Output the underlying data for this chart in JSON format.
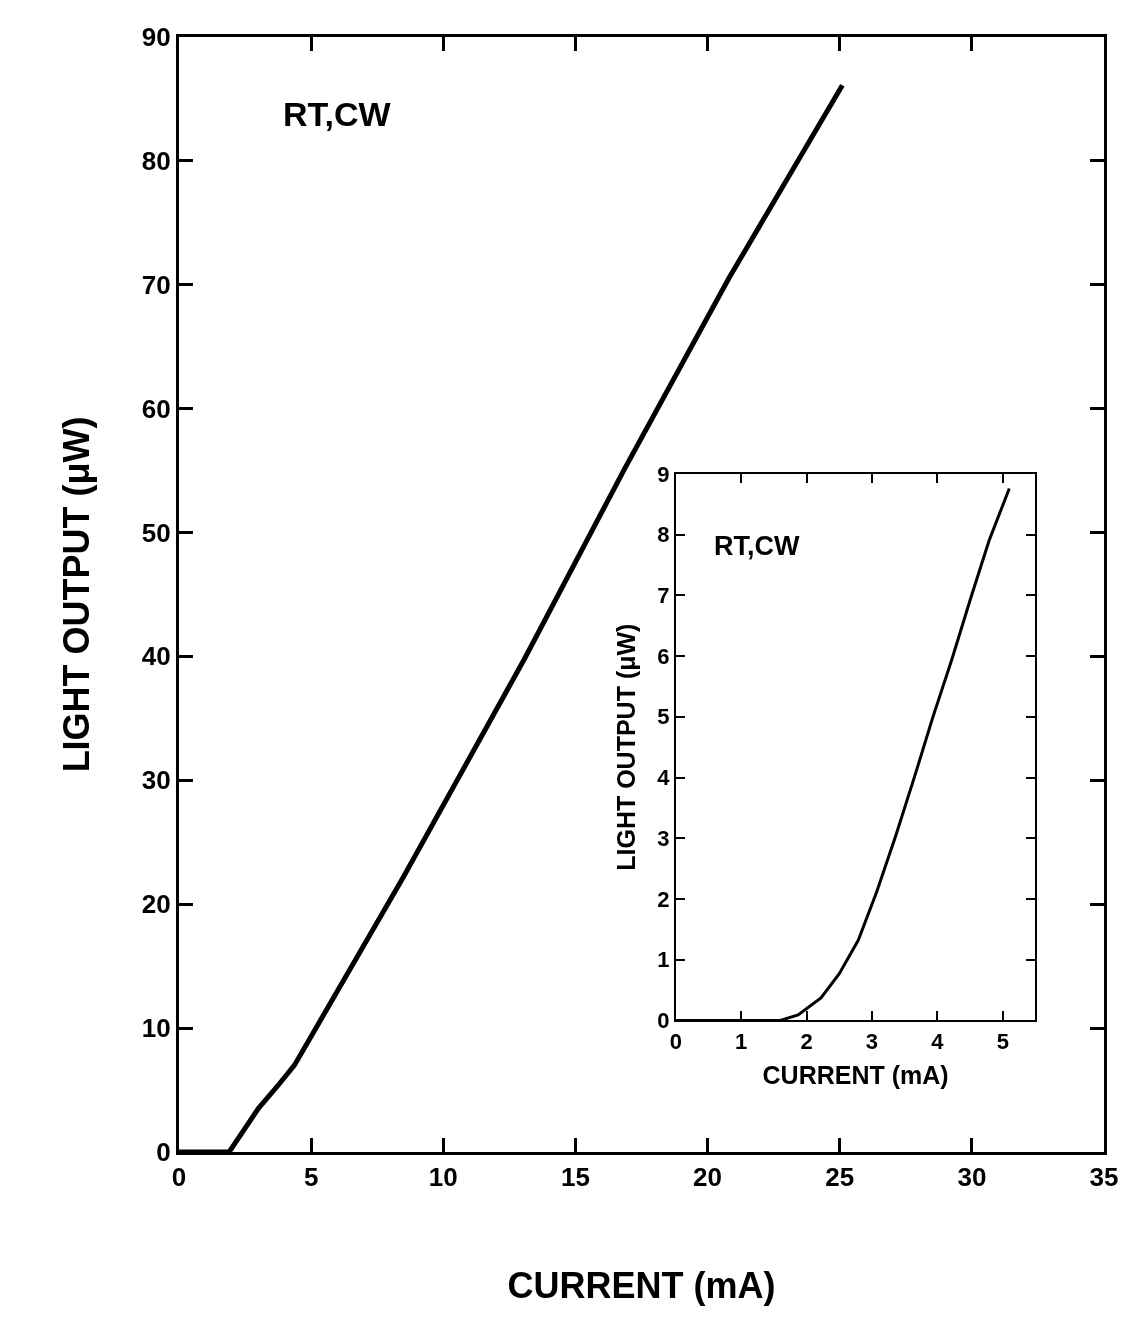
{
  "chart_data": [
    {
      "type": "line",
      "xlabel": "CURRENT (mA)",
      "ylabel": "LIGHT OUTPUT (μW)",
      "annotations": [
        "RT,CW"
      ],
      "xlim": [
        0,
        35
      ],
      "ylim": [
        0,
        90
      ],
      "xticks": [
        0,
        5,
        10,
        15,
        20,
        25,
        30,
        35
      ],
      "yticks": [
        0,
        10,
        20,
        30,
        40,
        50,
        60,
        70,
        80,
        90
      ],
      "marker": "none",
      "line_style": "solid",
      "series": [
        {
          "color": "#000000",
          "x": [
            0,
            1.9,
            3.0,
            3.8,
            4.37,
            8.47,
            13.1,
            16.9,
            20.8,
            25.1
          ],
          "values": [
            0,
            0,
            3.5,
            5.5,
            7.0,
            22.1,
            39.9,
            55.3,
            70.5,
            86.1
          ]
        }
      ]
    },
    {
      "type": "line",
      "xlabel": "CURRENT (mA)",
      "ylabel": "LIGHT OUTPUT (μW)",
      "annotations": [
        "RT,CW"
      ],
      "xlim": [
        0,
        5.5
      ],
      "ylim": [
        0,
        9
      ],
      "xticks": [
        0,
        1,
        2,
        3,
        4,
        5
      ],
      "yticks": [
        0,
        1,
        2,
        3,
        4,
        5,
        6,
        7,
        8,
        9
      ],
      "marker": "none",
      "line_style": "solid",
      "series": [
        {
          "color": "#000000",
          "x": [
            0,
            1.6,
            1.87,
            2.22,
            2.5,
            2.79,
            3.07,
            3.36,
            3.65,
            3.93,
            4.22,
            4.5,
            4.79,
            5.1
          ],
          "values": [
            0,
            0,
            0.09,
            0.37,
            0.77,
            1.32,
            2.11,
            3.03,
            4.01,
            4.99,
            5.94,
            6.92,
            7.9,
            8.76
          ]
        }
      ]
    }
  ]
}
